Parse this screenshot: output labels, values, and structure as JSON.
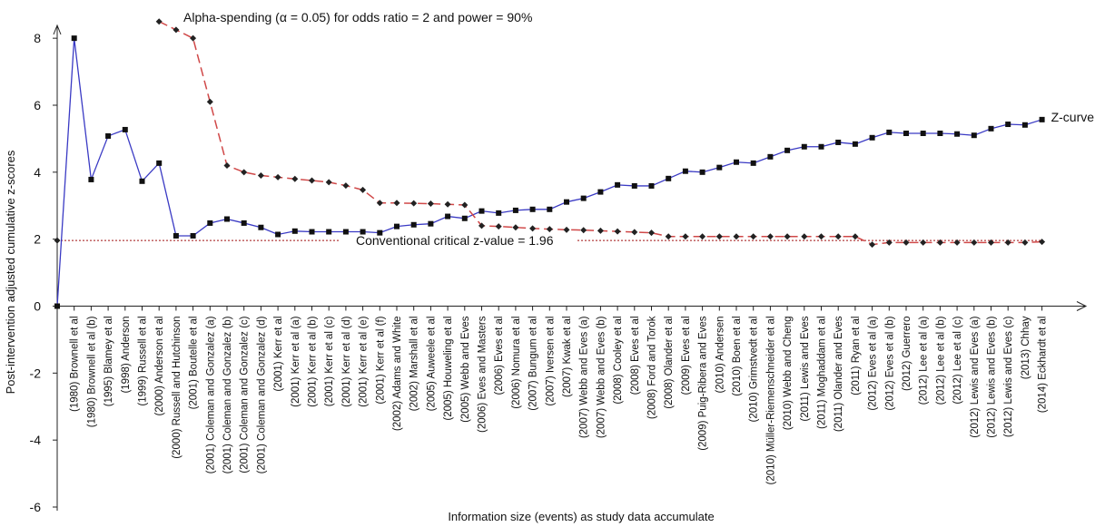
{
  "chart_data": {
    "type": "line",
    "ylabel": "Post-intervention adjusted cumulative z-scores",
    "xlabel": "Information size (events) as study data accumulate",
    "categories": [
      null,
      "(1980) Brownell et al",
      "(1980) Brownell et al (b)",
      "(1995) Blamey et al",
      "(1998) Anderson",
      "(1999) Russell et al",
      "(2000) Anderson et al",
      "(2000) Russell and Hutchinson",
      "(2001) Boutelle et al",
      "(2001) Coleman and Gonzalez (a)",
      "(2001) Coleman and Gonzalez (b)",
      "(2001) Coleman and Gonzalez (c)",
      "(2001) Coleman and Gonzalez (d)",
      "(2001) Kerr et al",
      "(2001) Kerr et al (a)",
      "(2001) Kerr et al (b)",
      "(2001) Kerr et al (c)",
      "(2001) Kerr et al (d)",
      "(2001) Kerr et al (e)",
      "(2001) Kerr et al (f)",
      "(2002) Adams and White",
      "(2002) Marshall et al",
      "(2005) Auweele et al",
      "(2005) Houweling et al",
      "(2005) Webb and Eves",
      "(2006) Eves and Masters",
      "(2006) Eves et al",
      "(2006) Nomura et al",
      "(2007) Bungum et al",
      "(2007) Iversen et al",
      "(2007) Kwak et al",
      "(2007) Webb and Eves (a)",
      "(2007) Webb and Eves (b)",
      "(2008) Cooley et al",
      "(2008) Eves et al",
      "(2008) Ford and Torok",
      "(2008) Olander et al",
      "(2009) Eves et al",
      "(2009) Puig-Ribera and Eves",
      "(2010) Andersen",
      "(2010) Boen et al",
      "(2010) Grimstvedt et al",
      "(2010) Müller-Riemenschneider et al",
      "(2010) Webb and Cheng",
      "(2011) Lewis and Eves",
      "(2011) Moghaddam et al",
      "(2011) Olander and Eves",
      "(2011) Ryan et al",
      "(2012) Eves et al (a)",
      "(2012) Eves et al (b)",
      "(2012) Guerrero",
      "(2012) Lee et al (a)",
      "(2012) Lee et al (b)",
      "(2012) Lee et al (c)",
      "(2012) Lewis and Eves (a)",
      "(2012) Lewis and Eves (b)",
      "(2012) Lewis and Eves (c)",
      "(2013) Chhay",
      "(2014) Eckhardt et al"
    ],
    "series": [
      {
        "name": "Z-curve",
        "color": "#3a3ac4",
        "marker": "square",
        "values": [
          0,
          8.0,
          3.78,
          5.08,
          5.27,
          3.73,
          4.27,
          2.1,
          2.1,
          2.48,
          2.6,
          2.48,
          2.35,
          2.14,
          2.24,
          2.22,
          2.22,
          2.22,
          2.22,
          2.19,
          2.38,
          2.43,
          2.46,
          2.68,
          2.62,
          2.84,
          2.78,
          2.86,
          2.89,
          2.89,
          3.11,
          3.22,
          3.41,
          3.62,
          3.59,
          3.59,
          3.81,
          4.03,
          4.0,
          4.14,
          4.3,
          4.27,
          4.46,
          4.65,
          4.76,
          4.76,
          4.89,
          4.84,
          5.03,
          5.19,
          5.16,
          5.16,
          5.16,
          5.14,
          5.1,
          5.3,
          5.43,
          5.41,
          5.57
        ]
      },
      {
        "name": "Alpha-spending (α = 0.05) for odds ratio = 2 and power = 90%",
        "color": "#d04848",
        "marker": "diamond",
        "dash": true,
        "values": [
          null,
          null,
          null,
          null,
          null,
          null,
          8.5,
          8.25,
          8.0,
          6.1,
          4.2,
          4.0,
          3.9,
          3.85,
          3.8,
          3.75,
          3.7,
          3.6,
          3.47,
          3.08,
          3.08,
          3.07,
          3.06,
          3.04,
          3.02,
          2.4,
          2.38,
          2.35,
          2.32,
          2.3,
          2.28,
          2.27,
          2.25,
          2.23,
          2.21,
          2.19,
          2.08,
          2.08,
          2.08,
          2.08,
          2.08,
          2.08,
          2.08,
          2.08,
          2.08,
          2.08,
          2.08,
          2.08,
          1.84,
          1.9,
          1.9,
          1.9,
          1.9,
          1.9,
          1.9,
          1.9,
          1.9,
          1.9,
          1.92
        ]
      }
    ],
    "critical_line": {
      "value": 1.96,
      "label": "Conventional critical z-value = 1.96",
      "color": "#a01010"
    },
    "ylim": [
      -6,
      8.6
    ],
    "yticks": [
      -6,
      -4,
      -2,
      0,
      2,
      4,
      6,
      8
    ]
  }
}
